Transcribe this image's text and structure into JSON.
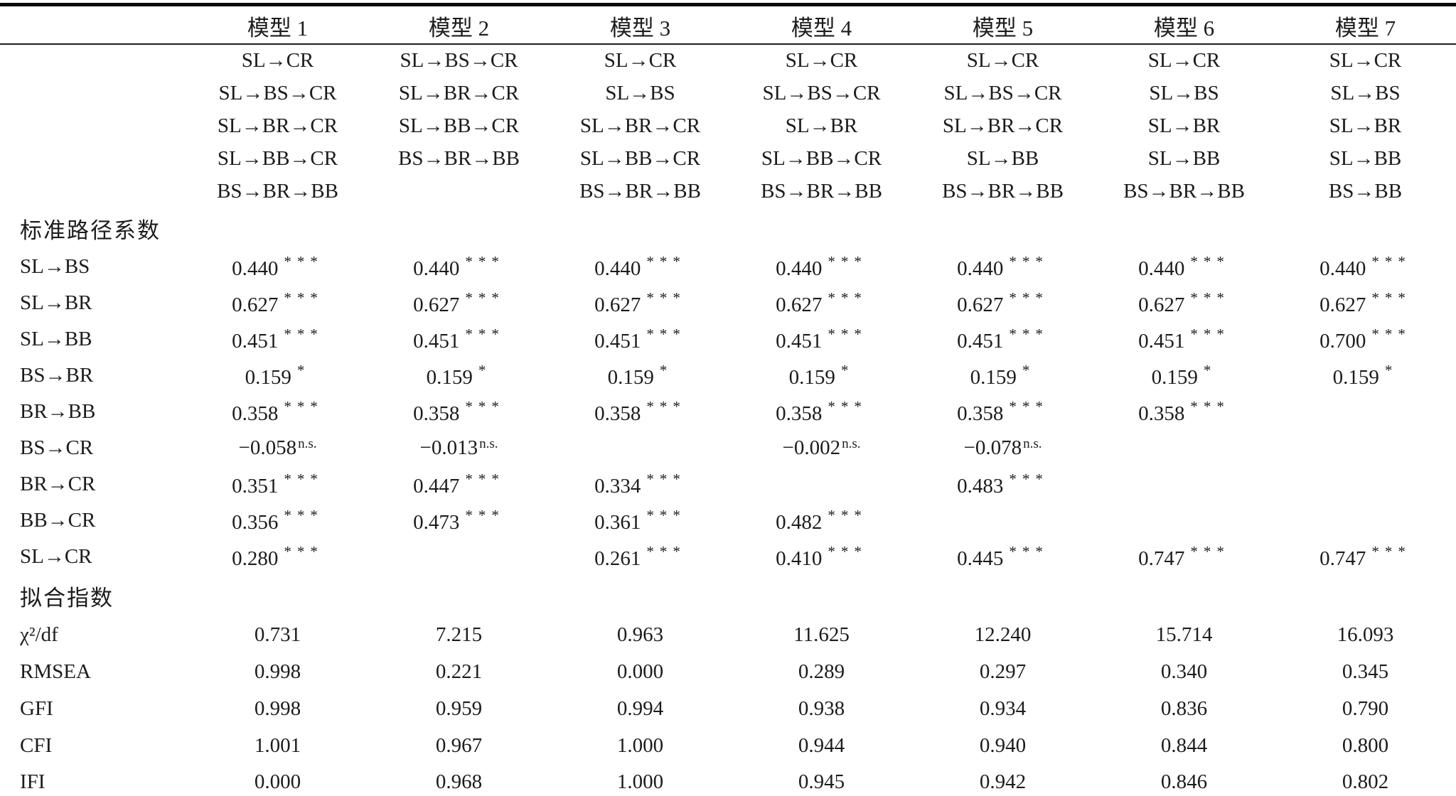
{
  "table": {
    "columns": [
      "模型 1",
      "模型 2",
      "模型 3",
      "模型 4",
      "模型 5",
      "模型 6",
      "模型 7"
    ],
    "path_spec_rows": [
      [
        "SL→CR",
        "SL→BS→CR",
        "SL→CR",
        "SL→CR",
        "SL→CR",
        "SL→CR",
        "SL→CR"
      ],
      [
        "SL→BS→CR",
        "SL→BR→CR",
        "SL→BS",
        "SL→BS→CR",
        "SL→BS→CR",
        "SL→BS",
        "SL→BS"
      ],
      [
        "SL→BR→CR",
        "SL→BB→CR",
        "SL→BR→CR",
        "SL→BR",
        "SL→BR→CR",
        "SL→BR",
        "SL→BR"
      ],
      [
        "SL→BB→CR",
        "BS→BR→BB",
        "SL→BB→CR",
        "SL→BB→CR",
        "SL→BB",
        "SL→BB",
        "SL→BB"
      ],
      [
        "BS→BR→BB",
        "",
        "BS→BR→BB",
        "BS→BR→BB",
        "BS→BR→BB",
        "BS→BR→BB",
        "BS→BB"
      ]
    ],
    "section_coefficients": "标准路径系数",
    "coef_rows": [
      {
        "label": "SL→BS",
        "cells": [
          {
            "v": "0.440",
            "sig": "***"
          },
          {
            "v": "0.440",
            "sig": "***"
          },
          {
            "v": "0.440",
            "sig": "***"
          },
          {
            "v": "0.440",
            "sig": "***"
          },
          {
            "v": "0.440",
            "sig": "***"
          },
          {
            "v": "0.440",
            "sig": "***"
          },
          {
            "v": "0.440",
            "sig": "***"
          }
        ]
      },
      {
        "label": "SL→BR",
        "cells": [
          {
            "v": "0.627",
            "sig": "***"
          },
          {
            "v": "0.627",
            "sig": "***"
          },
          {
            "v": "0.627",
            "sig": "***"
          },
          {
            "v": "0.627",
            "sig": "***"
          },
          {
            "v": "0.627",
            "sig": "***"
          },
          {
            "v": "0.627",
            "sig": "***"
          },
          {
            "v": "0.627",
            "sig": "***"
          }
        ]
      },
      {
        "label": "SL→BB",
        "cells": [
          {
            "v": "0.451",
            "sig": "***"
          },
          {
            "v": "0.451",
            "sig": "***"
          },
          {
            "v": "0.451",
            "sig": "***"
          },
          {
            "v": "0.451",
            "sig": "***"
          },
          {
            "v": "0.451",
            "sig": "***"
          },
          {
            "v": "0.451",
            "sig": "***"
          },
          {
            "v": "0.700",
            "sig": "***"
          }
        ]
      },
      {
        "label": "BS→BR",
        "cells": [
          {
            "v": "0.159",
            "sig": "*"
          },
          {
            "v": "0.159",
            "sig": "*"
          },
          {
            "v": "0.159",
            "sig": "*"
          },
          {
            "v": "0.159",
            "sig": "*"
          },
          {
            "v": "0.159",
            "sig": "*"
          },
          {
            "v": "0.159",
            "sig": "*"
          },
          {
            "v": "0.159",
            "sig": "*"
          }
        ]
      },
      {
        "label": "BR→BB",
        "cells": [
          {
            "v": "0.358",
            "sig": "***"
          },
          {
            "v": "0.358",
            "sig": "***"
          },
          {
            "v": "0.358",
            "sig": "***"
          },
          {
            "v": "0.358",
            "sig": "***"
          },
          {
            "v": "0.358",
            "sig": "***"
          },
          {
            "v": "0.358",
            "sig": "***"
          },
          ""
        ]
      },
      {
        "label": "BS→CR",
        "cells": [
          {
            "v": "−0.058",
            "sig": "n.s."
          },
          {
            "v": "−0.013",
            "sig": "n.s."
          },
          "",
          {
            "v": "−0.002",
            "sig": "n.s."
          },
          {
            "v": "−0.078",
            "sig": "n.s."
          },
          "",
          ""
        ]
      },
      {
        "label": "BR→CR",
        "cells": [
          {
            "v": "0.351",
            "sig": "***"
          },
          {
            "v": "0.447",
            "sig": "***"
          },
          {
            "v": "0.334",
            "sig": "***"
          },
          "",
          {
            "v": "0.483",
            "sig": "***"
          },
          "",
          ""
        ]
      },
      {
        "label": "BB→CR",
        "cells": [
          {
            "v": "0.356",
            "sig": "***"
          },
          {
            "v": "0.473",
            "sig": "***"
          },
          {
            "v": "0.361",
            "sig": "***"
          },
          {
            "v": "0.482",
            "sig": "***"
          },
          "",
          "",
          ""
        ]
      },
      {
        "label": "SL→CR",
        "cells": [
          {
            "v": "0.280",
            "sig": "***"
          },
          "",
          {
            "v": "0.261",
            "sig": "***"
          },
          {
            "v": "0.410",
            "sig": "***"
          },
          {
            "v": "0.445",
            "sig": "***"
          },
          {
            "v": "0.747",
            "sig": "***"
          },
          {
            "v": "0.747",
            "sig": "***"
          }
        ]
      }
    ],
    "section_fit": "拟合指数",
    "fit_rows": [
      {
        "label": "χ²/df",
        "values": [
          "0.731",
          "7.215",
          "0.963",
          "11.625",
          "12.240",
          "15.714",
          "16.093"
        ]
      },
      {
        "label": "RMSEA",
        "values": [
          "0.998",
          "0.221",
          "0.000",
          "0.289",
          "0.297",
          "0.340",
          "0.345"
        ]
      },
      {
        "label": "GFI",
        "values": [
          "0.998",
          "0.959",
          "0.994",
          "0.938",
          "0.934",
          "0.836",
          "0.790"
        ]
      },
      {
        "label": "CFI",
        "values": [
          "1.001",
          "0.967",
          "1.000",
          "0.944",
          "0.940",
          "0.844",
          "0.800"
        ]
      },
      {
        "label": "IFI",
        "values": [
          "0.000",
          "0.968",
          "1.000",
          "0.945",
          "0.942",
          "0.846",
          "0.802"
        ]
      }
    ]
  }
}
